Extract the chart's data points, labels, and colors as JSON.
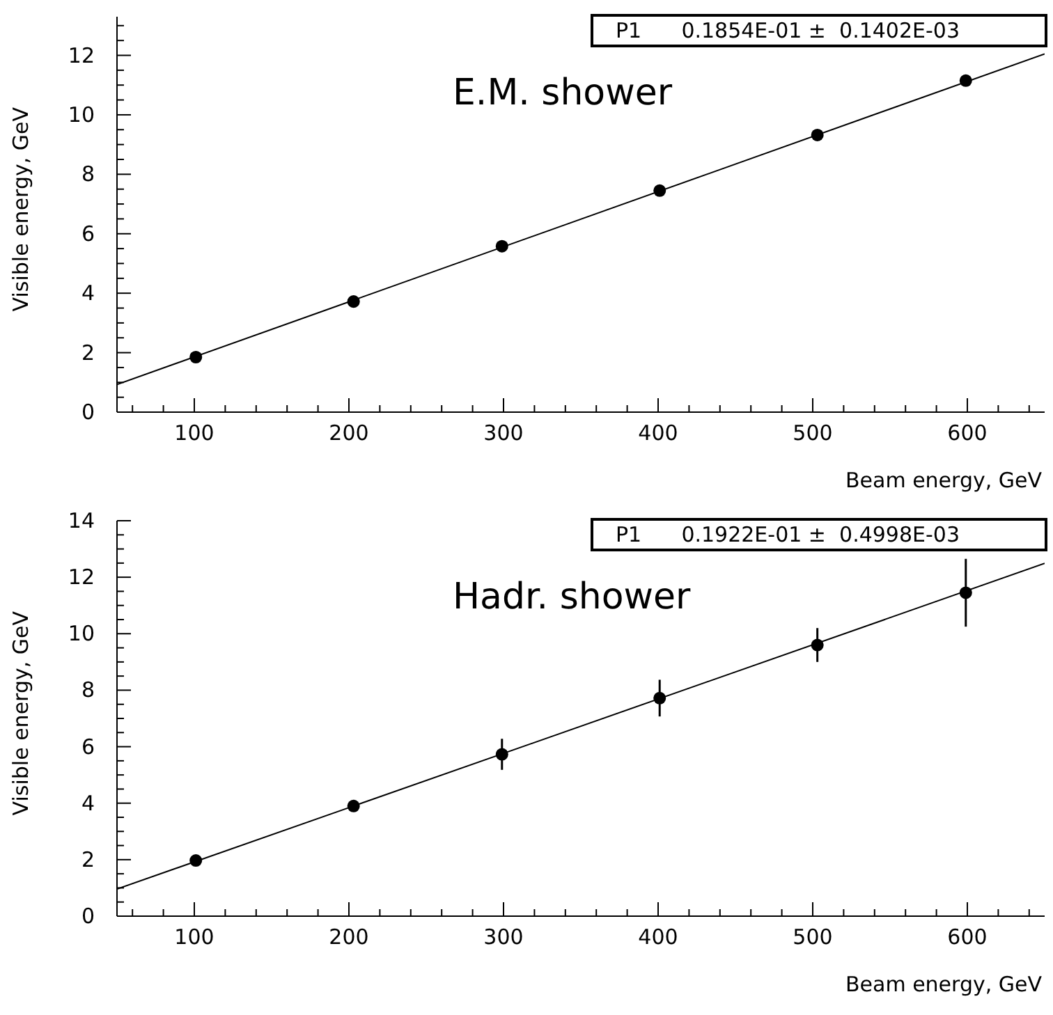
{
  "chart_data": [
    {
      "type": "scatter",
      "xlabel": "Beam energy, GeV",
      "ylabel": "Visible energy, GeV",
      "annotations": [
        "P1      0.1854E-01 ±  0.1402E-03",
        "E.M. shower"
      ],
      "xlim": [
        50,
        650
      ],
      "ylim": [
        0,
        13.3
      ],
      "xticks": [
        {
          "value": 60,
          "label": null
        },
        {
          "value": 80,
          "label": null
        },
        100,
        {
          "value": 120,
          "label": null
        },
        {
          "value": 140,
          "label": null
        },
        {
          "value": 160,
          "label": null
        },
        {
          "value": 180,
          "label": null
        },
        200,
        {
          "value": 220,
          "label": null
        },
        {
          "value": 240,
          "label": null
        },
        {
          "value": 260,
          "label": null
        },
        {
          "value": 280,
          "label": null
        },
        300,
        {
          "value": 320,
          "label": null
        },
        {
          "value": 340,
          "label": null
        },
        {
          "value": 360,
          "label": null
        },
        {
          "value": 380,
          "label": null
        },
        400,
        {
          "value": 420,
          "label": null
        },
        {
          "value": 440,
          "label": null
        },
        {
          "value": 460,
          "label": null
        },
        {
          "value": 480,
          "label": null
        },
        500,
        {
          "value": 520,
          "label": null
        },
        {
          "value": 540,
          "label": null
        },
        {
          "value": 560,
          "label": null
        },
        {
          "value": 580,
          "label": null
        },
        600,
        {
          "value": 620,
          "label": null
        },
        {
          "value": 640,
          "label": null
        }
      ],
      "yticks": [
        0,
        {
          "value": 0.5,
          "label": null
        },
        {
          "value": 1,
          "label": null
        },
        {
          "value": 1.5,
          "label": null
        },
        2,
        {
          "value": 2.5,
          "label": null
        },
        {
          "value": 3,
          "label": null
        },
        {
          "value": 3.5,
          "label": null
        },
        4,
        {
          "value": 4.5,
          "label": null
        },
        {
          "value": 5,
          "label": null
        },
        {
          "value": 5.5,
          "label": null
        },
        6,
        {
          "value": 6.5,
          "label": null
        },
        {
          "value": 7,
          "label": null
        },
        {
          "value": 7.5,
          "label": null
        },
        8,
        {
          "value": 8.5,
          "label": null
        },
        {
          "value": 9,
          "label": null
        },
        {
          "value": 9.5,
          "label": null
        },
        10,
        {
          "value": 10.5,
          "label": null
        },
        {
          "value": 11,
          "label": null
        },
        {
          "value": 11.5,
          "label": null
        },
        12,
        {
          "value": 12.5,
          "label": null
        },
        {
          "value": 13,
          "label": null
        }
      ],
      "series": [
        {
          "marker": "circle",
          "color": "#000000",
          "x": [
            101,
            203,
            299,
            401,
            503,
            599
          ],
          "values": [
            1.85,
            3.72,
            5.58,
            7.45,
            9.32,
            11.15
          ]
        },
        {
          "type": "line",
          "marker": "none",
          "color": "#000000",
          "x": [
            50,
            650
          ],
          "values": [
            0.93,
            12.05
          ]
        }
      ]
    },
    {
      "type": "scatter",
      "xlabel": "Beam energy, GeV",
      "ylabel": "Visible energy, GeV",
      "annotations": [
        "P1      0.1922E-01 ±  0.4998E-03",
        "Hadr. shower"
      ],
      "xlim": [
        50,
        650
      ],
      "ylim": [
        0,
        14
      ],
      "xticks": [
        {
          "value": 60,
          "label": null
        },
        {
          "value": 80,
          "label": null
        },
        100,
        {
          "value": 120,
          "label": null
        },
        {
          "value": 140,
          "label": null
        },
        {
          "value": 160,
          "label": null
        },
        {
          "value": 180,
          "label": null
        },
        200,
        {
          "value": 220,
          "label": null
        },
        {
          "value": 240,
          "label": null
        },
        {
          "value": 260,
          "label": null
        },
        {
          "value": 280,
          "label": null
        },
        300,
        {
          "value": 320,
          "label": null
        },
        {
          "value": 340,
          "label": null
        },
        {
          "value": 360,
          "label": null
        },
        {
          "value": 380,
          "label": null
        },
        400,
        {
          "value": 420,
          "label": null
        },
        {
          "value": 440,
          "label": null
        },
        {
          "value": 460,
          "label": null
        },
        {
          "value": 480,
          "label": null
        },
        500,
        {
          "value": 520,
          "label": null
        },
        {
          "value": 540,
          "label": null
        },
        {
          "value": 560,
          "label": null
        },
        {
          "value": 580,
          "label": null
        },
        600,
        {
          "value": 620,
          "label": null
        },
        {
          "value": 640,
          "label": null
        }
      ],
      "yticks": [
        0,
        {
          "value": 0.5,
          "label": null
        },
        {
          "value": 1,
          "label": null
        },
        {
          "value": 1.5,
          "label": null
        },
        2,
        {
          "value": 2.5,
          "label": null
        },
        {
          "value": 3,
          "label": null
        },
        {
          "value": 3.5,
          "label": null
        },
        4,
        {
          "value": 4.5,
          "label": null
        },
        {
          "value": 5,
          "label": null
        },
        {
          "value": 5.5,
          "label": null
        },
        6,
        {
          "value": 6.5,
          "label": null
        },
        {
          "value": 7,
          "label": null
        },
        {
          "value": 7.5,
          "label": null
        },
        8,
        {
          "value": 8.5,
          "label": null
        },
        {
          "value": 9,
          "label": null
        },
        {
          "value": 9.5,
          "label": null
        },
        10,
        {
          "value": 10.5,
          "label": null
        },
        {
          "value": 11,
          "label": null
        },
        {
          "value": 11.5,
          "label": null
        },
        12,
        {
          "value": 12.5,
          "label": null
        },
        {
          "value": 13,
          "label": null
        },
        {
          "value": 13.5,
          "label": null
        },
        14
      ],
      "series": [
        {
          "marker": "circle",
          "color": "#000000",
          "x": [
            101,
            203,
            299,
            401,
            503,
            599
          ],
          "values": [
            1.97,
            3.9,
            5.73,
            7.72,
            9.6,
            11.45
          ],
          "errors": [
            0.1,
            0.1,
            0.55,
            0.65,
            0.6,
            1.2
          ]
        },
        {
          "type": "line",
          "marker": "none",
          "color": "#000000",
          "x": [
            50,
            650
          ],
          "values": [
            0.96,
            12.49
          ]
        }
      ]
    }
  ]
}
